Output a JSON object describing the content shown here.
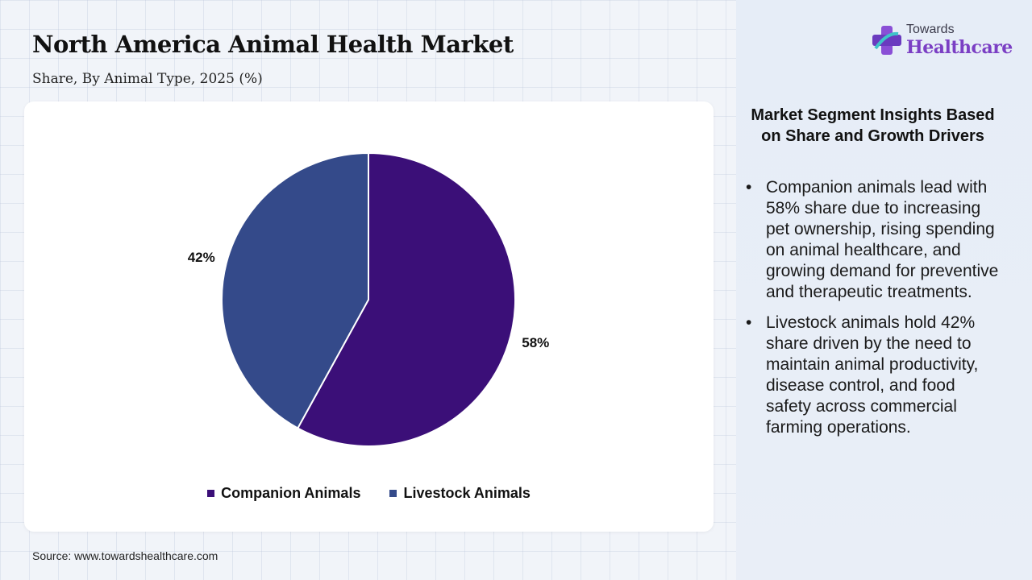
{
  "header": {
    "title": "North America Animal Health Market",
    "subtitle": "Share, By Animal Type, 2025 (%)"
  },
  "logo": {
    "top": "Towards",
    "bottom": "Healthcare"
  },
  "source": "Source: www.towardshealthcare.com",
  "insights": {
    "title": "Market Segment Insights Based on Share and Growth Drivers",
    "bullets": [
      "Companion animals lead with 58% share due to increasing pet ownership, rising spending on animal healthcare, and growing demand for preventive and therapeutic treatments.",
      "Livestock animals hold 42% share driven by the need to maintain animal productivity, disease control, and food safety across commercial farming operations."
    ]
  },
  "chart_data": {
    "type": "pie",
    "title": "North America Animal Health Market",
    "subtitle": "Share, By Animal Type, 2025 (%)",
    "categories": [
      "Companion Animals",
      "Livestock Animals"
    ],
    "values": [
      58,
      42
    ],
    "labels": [
      "58%",
      "42%"
    ],
    "colors": [
      "#3b0f78",
      "#344a8a"
    ],
    "legend_position": "bottom"
  }
}
